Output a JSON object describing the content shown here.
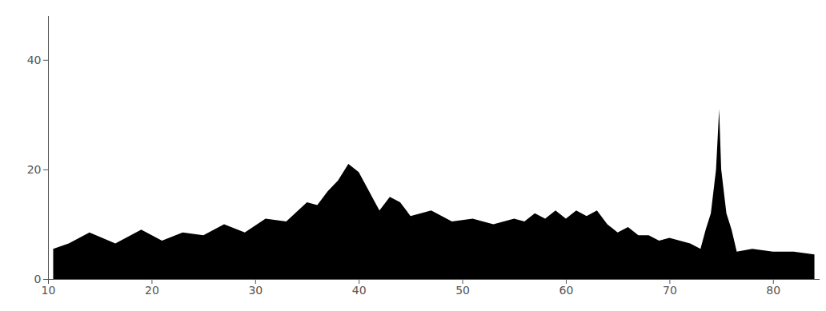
{
  "chart_data": {
    "type": "area",
    "x": [
      10.5,
      12,
      14,
      16.5,
      19,
      21,
      23,
      25,
      27,
      29,
      31,
      33,
      35,
      36,
      37,
      38,
      39,
      40,
      41,
      42,
      43,
      44,
      45,
      47,
      49,
      51,
      53,
      55,
      56,
      57,
      58,
      59,
      60,
      61,
      62,
      63,
      64,
      65,
      66,
      67,
      68,
      69,
      70,
      71,
      72,
      73,
      73.5,
      74,
      74.5,
      74.8,
      75,
      75.5,
      76,
      76.5,
      78,
      80,
      82,
      84
    ],
    "values": [
      5.5,
      6.5,
      8.5,
      6.5,
      9,
      7,
      8.5,
      8,
      10,
      8.5,
      11,
      10.5,
      14,
      13.5,
      16,
      18,
      21,
      19.5,
      16,
      12.5,
      15,
      14,
      11.5,
      12.5,
      10.5,
      11,
      10,
      11,
      10.5,
      12,
      11,
      12.5,
      11,
      12.5,
      11.5,
      12.5,
      10,
      8.5,
      9.5,
      8,
      8,
      7,
      7.5,
      7,
      6.5,
      5.5,
      9,
      12,
      20,
      31,
      20,
      12,
      9,
      5,
      5.5,
      5,
      5,
      4.5
    ],
    "color": "#000000",
    "xlim": [
      10,
      84.5
    ],
    "xticks": [
      10,
      20,
      30,
      40,
      50,
      60,
      70,
      80
    ],
    "ylim": [
      0,
      48
    ],
    "yticks": [
      0,
      20,
      40
    ],
    "grid": false
  }
}
